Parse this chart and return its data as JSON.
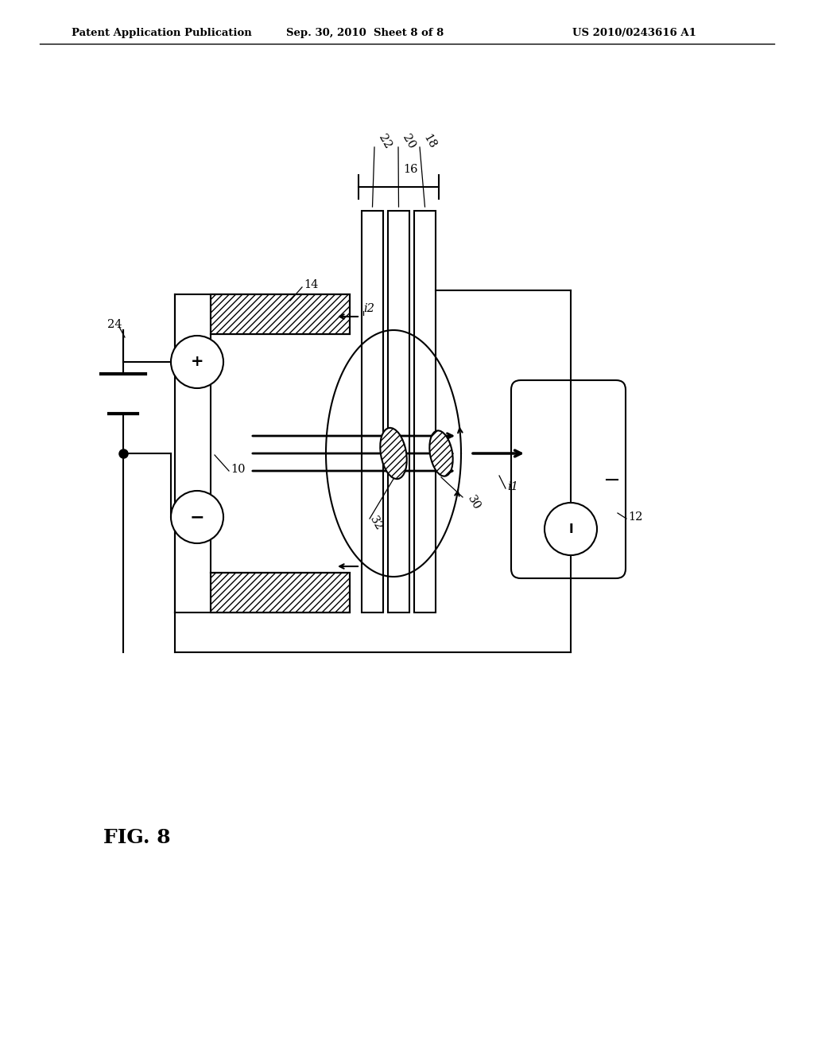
{
  "bg_color": "#ffffff",
  "line_color": "#000000",
  "header_left": "Patent Application Publication",
  "header_mid": "Sep. 30, 2010  Sheet 8 of 8",
  "header_right": "US 2010/0243616 A1",
  "fig_label": "FIG. 8"
}
